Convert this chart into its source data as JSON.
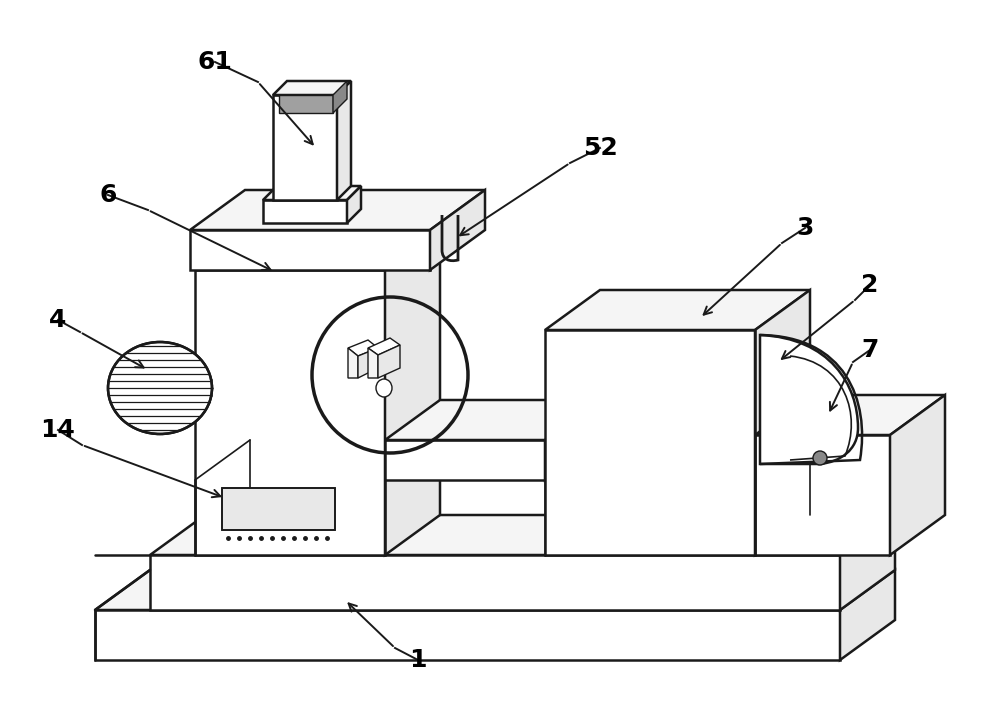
{
  "bg_color": "#ffffff",
  "line_color": "#1a1a1a",
  "lw_main": 1.8,
  "lw_thin": 1.2,
  "fill_white": "#ffffff",
  "fill_light": "#f5f5f5",
  "fill_mid": "#e8e8e8",
  "fill_dark": "#d5d5d5",
  "figsize": [
    10.0,
    7.26
  ],
  "dpi": 100
}
